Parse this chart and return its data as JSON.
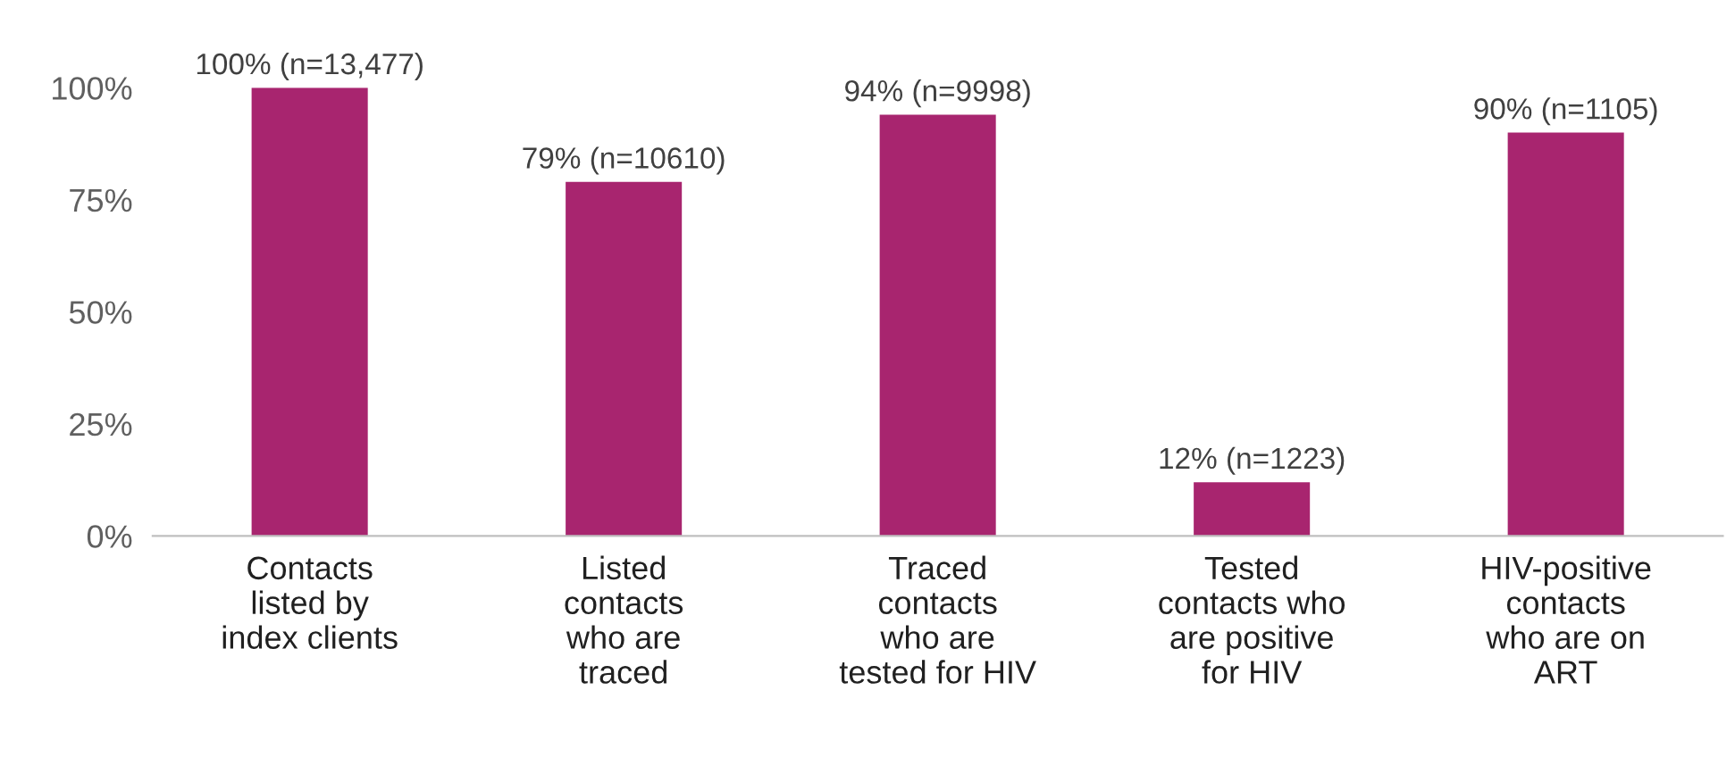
{
  "chart_data": {
    "type": "bar",
    "categories": [
      "Contacts\nlisted by\nindex clients",
      "Listed\ncontacts\nwho are\ntraced",
      "Traced\ncontacts\nwho are\ntested for HIV",
      "Tested\ncontacts who\nare positive\nfor HIV",
      "HIV-positive\ncontacts\nwho are on\nART"
    ],
    "values": [
      100,
      79,
      94,
      12,
      90
    ],
    "value_labels": [
      "100% (n=13,477)",
      "79% (n=10610)",
      "94% (n=9998)",
      "12% (n=1223)",
      "90% (n=1105)"
    ],
    "color": "#a8256f",
    "ylim": [
      0,
      100
    ],
    "yticks": [
      {
        "value": 0,
        "label": "0%"
      },
      {
        "value": 25,
        "label": "25%"
      },
      {
        "value": 50,
        "label": "50%"
      },
      {
        "value": 75,
        "label": "75%"
      },
      {
        "value": 100,
        "label": "100%"
      }
    ],
    "grid": false,
    "legend": false
  }
}
